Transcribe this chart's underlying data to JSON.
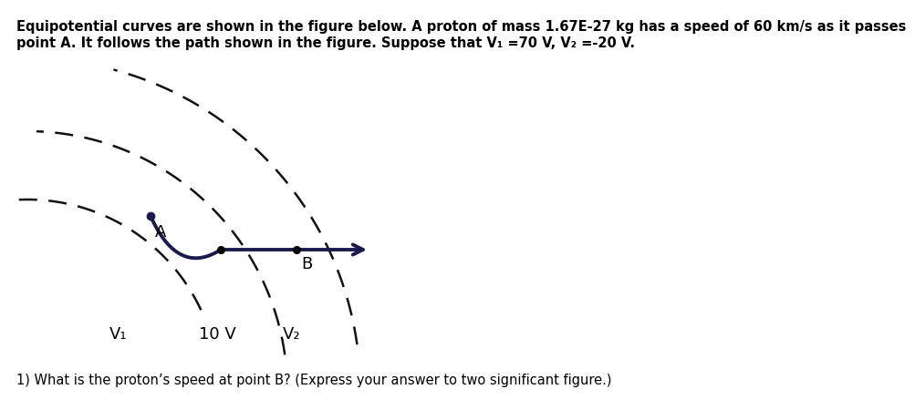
{
  "title_line1": "Equipotential curves are shown in the figure below. A proton of mass 1.67E-27 kg has a speed of 60 km/s as it passes",
  "title_line2": "point A. It follows the path shown in the figure. Suppose that V₁ =70 V, V₂ =-20 V.",
  "question_text": "1) What is the proton’s speed at point B? (Express your answer to two significant figure.)",
  "background_color": "#ffffff",
  "curve_color": "#1a1a4e",
  "dashed_color": "#111111",
  "label_A": "A",
  "label_B": "B",
  "label_V1": "V₁",
  "label_10V": "10 V",
  "label_V2": "V₂",
  "title_fontsize": 10.5,
  "question_fontsize": 10.5
}
